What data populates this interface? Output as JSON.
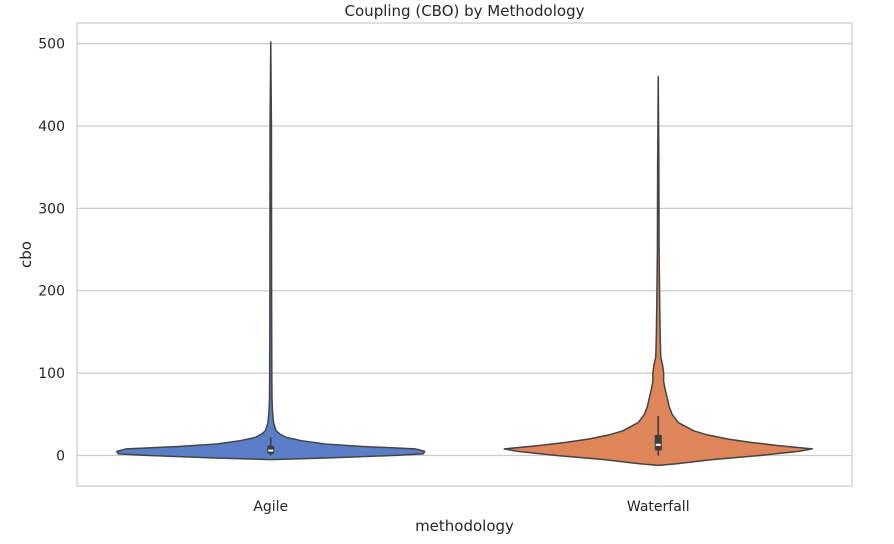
{
  "chart_data": {
    "type": "violin",
    "title": "Coupling (CBO) by Methodology",
    "xlabel": "methodology",
    "ylabel": "cbo",
    "ylim": [
      -37,
      525
    ],
    "yticks": [
      0,
      100,
      200,
      300,
      400,
      500
    ],
    "grid": "horizontal",
    "categories": [
      "Agile",
      "Waterfall"
    ],
    "colors": {
      "Agile": "#5A7FC8",
      "Waterfall": "#DE8659",
      "grid": "#CCCCCC",
      "axes_edge": "#CCCCCC",
      "outline": "#444444",
      "box": "#3F3F3F",
      "median": "#FFFFFF"
    },
    "series": [
      {
        "category": "Agile",
        "min": -5,
        "max": 502,
        "whisker_low": 0,
        "whisker_high": 22,
        "q1": 2,
        "median": 6,
        "q3": 12,
        "density": [
          [
            -5,
            0.0
          ],
          [
            -3,
            0.36
          ],
          [
            0,
            0.79
          ],
          [
            2,
            0.99
          ],
          [
            5,
            1.0
          ],
          [
            8,
            0.94
          ],
          [
            11,
            0.6
          ],
          [
            14,
            0.35
          ],
          [
            18,
            0.2
          ],
          [
            22,
            0.1
          ],
          [
            26,
            0.06
          ],
          [
            30,
            0.035
          ],
          [
            40,
            0.018
          ],
          [
            55,
            0.011
          ],
          [
            70,
            0.008
          ],
          [
            100,
            0.007
          ],
          [
            200,
            0.0055
          ],
          [
            300,
            0.005
          ],
          [
            400,
            0.0045
          ],
          [
            502,
            0.0
          ]
        ]
      },
      {
        "category": "Waterfall",
        "min": -12,
        "max": 460,
        "whisker_low": 0,
        "whisker_high": 48,
        "q1": 6,
        "median": 13,
        "q3": 25,
        "density": [
          [
            -12,
            0.0
          ],
          [
            -10,
            0.12
          ],
          [
            -5,
            0.35
          ],
          [
            0,
            0.66
          ],
          [
            5,
            0.91
          ],
          [
            8,
            1.0
          ],
          [
            12,
            0.78
          ],
          [
            16,
            0.6
          ],
          [
            20,
            0.45
          ],
          [
            25,
            0.32
          ],
          [
            30,
            0.23
          ],
          [
            40,
            0.13
          ],
          [
            50,
            0.09
          ],
          [
            60,
            0.07
          ],
          [
            70,
            0.058
          ],
          [
            80,
            0.045
          ],
          [
            90,
            0.035
          ],
          [
            100,
            0.035
          ],
          [
            110,
            0.028
          ],
          [
            120,
            0.016
          ],
          [
            150,
            0.012
          ],
          [
            190,
            0.009
          ],
          [
            250,
            0.0055
          ],
          [
            350,
            0.004
          ],
          [
            460,
            0.0
          ]
        ]
      }
    ]
  }
}
